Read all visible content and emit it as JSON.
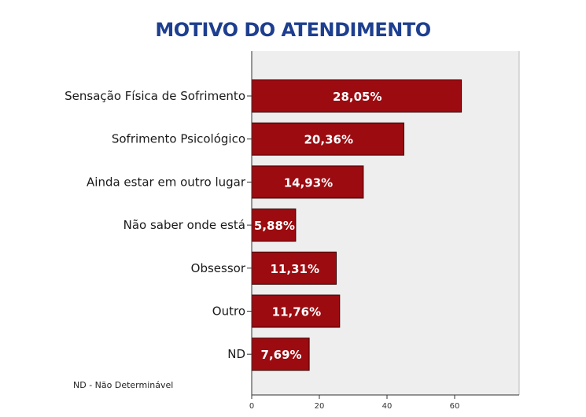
{
  "chart_data": {
    "type": "bar",
    "orientation": "horizontal",
    "title": "MOTIVO DO ATENDIMENTO",
    "categories": [
      "Sensação Física de Sofrimento",
      "Sofrimento Psicológico",
      "Ainda estar em outro lugar",
      "Não saber onde está",
      "Obsessor",
      "Outro",
      "ND"
    ],
    "values": [
      62,
      45,
      33,
      13,
      25,
      26,
      17
    ],
    "data_labels": [
      "28,05%",
      "20,36%",
      "14,93%",
      "5,88%",
      "11,31%",
      "11,76%",
      "7,69%"
    ],
    "xlim": [
      0,
      80
    ],
    "xticks": [
      "0",
      "20",
      "40",
      "60"
    ],
    "grid": false,
    "bar_color": "#9b0b10",
    "plot_background": "#eeeeee",
    "title_color": "#1e3f8f"
  },
  "footnote": "ND - Não Determinável"
}
